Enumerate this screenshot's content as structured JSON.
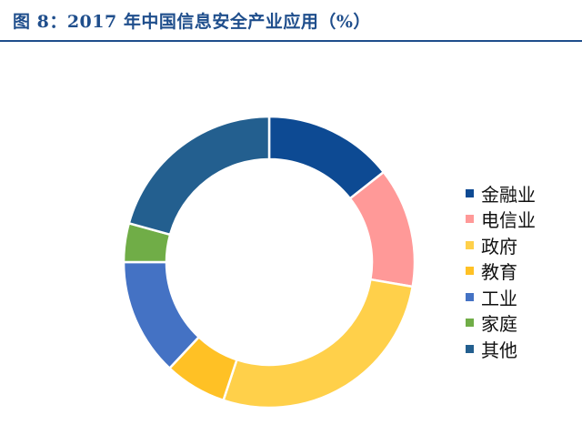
{
  "title": "图 8：2017 年中国信息安全产业应用（%）",
  "chart_data": {
    "type": "pie",
    "subtype": "donut",
    "legend_position": "right",
    "categories": [
      "金融业",
      "电信业",
      "政府",
      "教育",
      "工业",
      "家庭",
      "其他"
    ],
    "values": [
      14.4,
      13.3,
      27.4,
      6.9,
      13.0,
      4.3,
      20.7
    ],
    "colors": [
      "#0d4a93",
      "#ff9998",
      "#ffd04a",
      "#ffc125",
      "#4472c4",
      "#70ad47",
      "#235f8f"
    ]
  }
}
